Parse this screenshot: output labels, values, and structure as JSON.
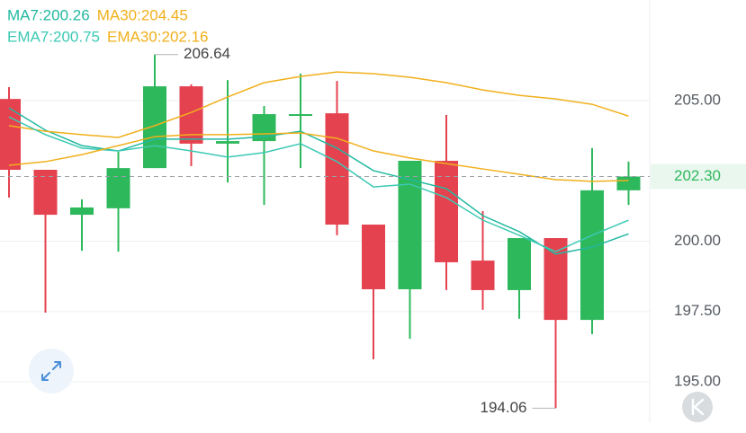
{
  "chart_data": {
    "type": "candlestick",
    "up_color": "#2eb85c",
    "down_color": "#e5424f",
    "open": [
      205.06,
      202.54,
      200.94,
      201.17,
      202.6,
      205.51,
      203.47,
      203.56,
      204.52,
      204.55,
      200.59,
      198.29,
      202.86,
      199.31,
      198.26,
      200.11,
      197.2,
      201.81
    ],
    "high": [
      205.48,
      202.54,
      201.49,
      203.18,
      206.64,
      205.58,
      205.73,
      204.81,
      205.96,
      205.7,
      200.59,
      202.86,
      204.49,
      201.07,
      200.11,
      200.11,
      203.31,
      202.83
    ],
    "low": [
      201.55,
      197.46,
      199.66,
      199.63,
      202.6,
      202.67,
      202.09,
      201.29,
      202.6,
      200.21,
      195.8,
      196.53,
      198.26,
      197.56,
      197.24,
      194.06,
      196.69,
      201.29
    ],
    "close": [
      202.54,
      200.94,
      201.2,
      202.6,
      205.51,
      203.47,
      203.56,
      204.52,
      204.52,
      200.59,
      198.29,
      202.86,
      199.25,
      198.26,
      200.11,
      197.2,
      201.81,
      202.3
    ],
    "series": [
      {
        "name": "MA7",
        "legend_label": "MA7:200.26",
        "color": "#22b8a0",
        "values": [
          204.74,
          203.95,
          203.4,
          203.21,
          203.63,
          203.63,
          203.63,
          203.72,
          203.91,
          203.31,
          202.51,
          202.19,
          201.87,
          200.91,
          200.34,
          199.54,
          199.79,
          200.26
        ]
      },
      {
        "name": "MA30",
        "legend_label": "MA30:204.45",
        "color": "#f0b01c",
        "values": [
          204.11,
          203.91,
          203.79,
          203.69,
          204.11,
          204.58,
          205.13,
          205.64,
          205.86,
          206.02,
          205.96,
          205.83,
          205.64,
          205.38,
          205.19,
          205.06,
          204.87,
          204.45
        ]
      },
      {
        "name": "EMA7",
        "legend_label": "EMA7:200.75",
        "color": "#3cc9b4",
        "values": [
          204.42,
          203.79,
          203.31,
          203.21,
          203.4,
          203.21,
          202.99,
          203.15,
          203.47,
          202.83,
          201.93,
          202.03,
          201.55,
          200.75,
          200.21,
          199.63,
          200.21,
          200.75
        ]
      },
      {
        "name": "EMA30",
        "legend_label": "EMA30:202.16",
        "color": "#f0b01c",
        "values": [
          202.7,
          202.83,
          203.08,
          203.4,
          203.72,
          203.79,
          203.79,
          203.82,
          203.85,
          203.66,
          203.21,
          202.96,
          202.76,
          202.57,
          202.38,
          202.19,
          202.13,
          202.16
        ]
      }
    ],
    "ylim": [
      193.56,
      208.58
    ],
    "yticks": [
      {
        "value": 205,
        "label": "205.00"
      },
      {
        "value": 200,
        "label": "200.00"
      },
      {
        "value": 197.5,
        "label": "197.50"
      },
      {
        "value": 195,
        "label": "195.00"
      }
    ],
    "grid": true,
    "current_price": {
      "value": 202.3,
      "label": "202.30"
    },
    "high_label": {
      "value": 206.64,
      "label": "206.64"
    },
    "low_label": {
      "value": 194.06,
      "label": "194.06"
    }
  }
}
